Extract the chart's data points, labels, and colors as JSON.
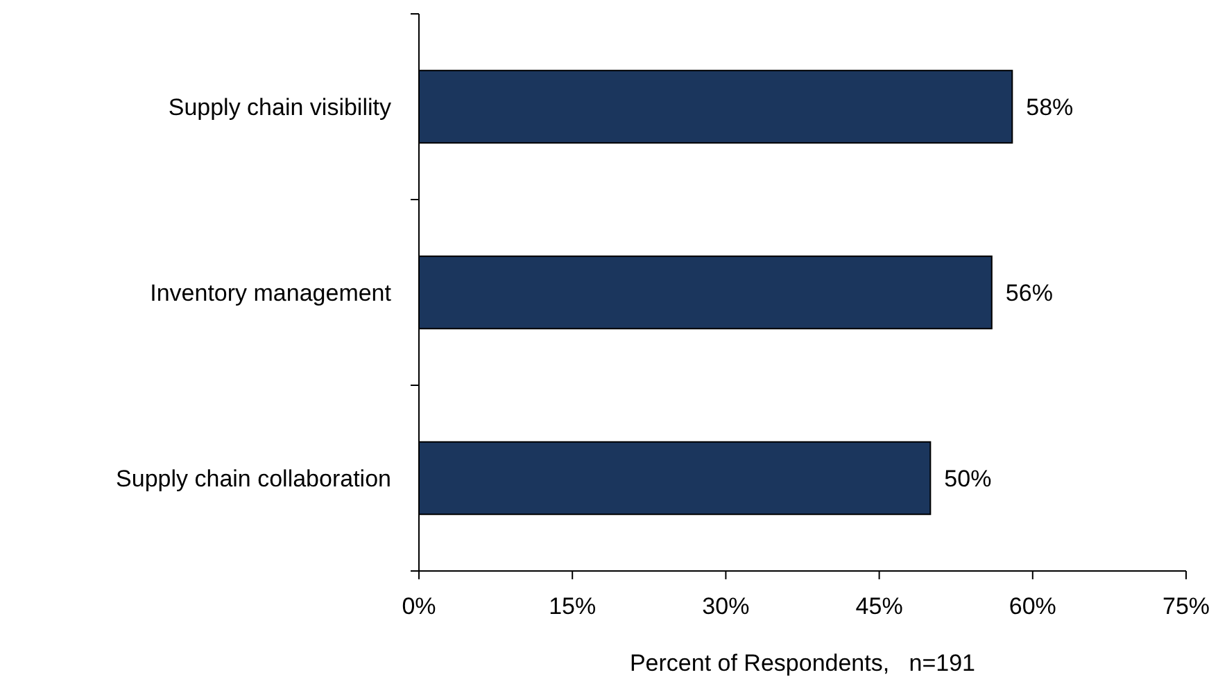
{
  "chart_data": {
    "type": "bar",
    "orientation": "horizontal",
    "xlabel": "Percent of Respondents,   n=191",
    "categories": [
      "Supply chain visibility",
      "Inventory management",
      "Supply chain collaboration"
    ],
    "values": [
      58,
      56,
      50
    ],
    "color": "#1b365d",
    "value_labels": [
      "58%",
      "56%",
      "50%"
    ],
    "xlim": [
      0,
      75
    ],
    "xticks": [
      {
        "value": 0,
        "label": "0%"
      },
      {
        "value": 15,
        "label": "15%"
      },
      {
        "value": 30,
        "label": "30%"
      },
      {
        "value": 45,
        "label": "45%"
      },
      {
        "value": 60,
        "label": "60%"
      },
      {
        "value": 75,
        "label": "75%"
      }
    ],
    "grid": false
  }
}
